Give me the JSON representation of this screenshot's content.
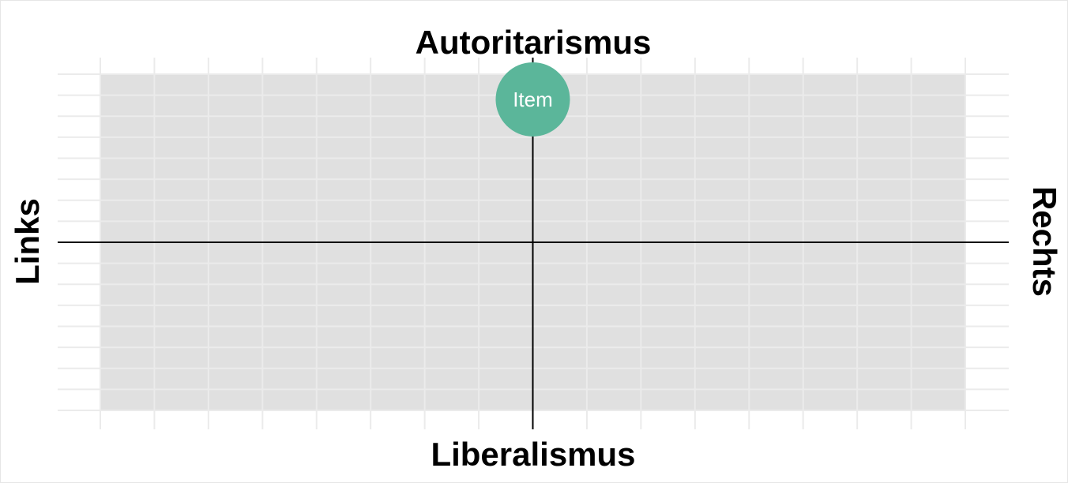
{
  "chart_data": {
    "type": "scatter",
    "title": "",
    "axis_titles": {
      "top": "Autoritarismus",
      "bottom": "Liberalismus",
      "left": "Links",
      "right": "Rechts"
    },
    "xlim": [
      -10,
      10
    ],
    "ylim": [
      -10,
      10
    ],
    "grid": true,
    "quadrant_fill": "#e0e0e0",
    "grid_color": "#ebebeb",
    "axis_color": "#000000",
    "points": [
      {
        "label": "Item",
        "x": 0,
        "y": 8.5,
        "color": "#5bb69a"
      }
    ]
  }
}
